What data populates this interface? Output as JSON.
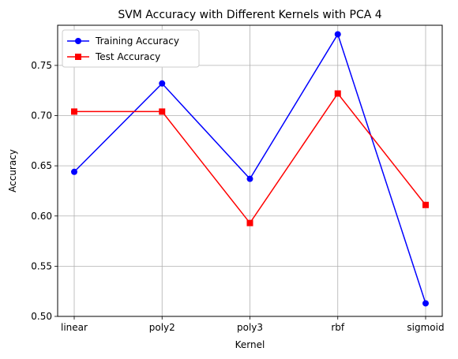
{
  "chart_data": {
    "type": "line",
    "title": "SVM Accuracy with Different Kernels with PCA 4",
    "xlabel": "Kernel",
    "ylabel": "Accuracy",
    "categories": [
      "linear",
      "poly2",
      "poly3",
      "rbf",
      "sigmoid"
    ],
    "ylim": [
      0.5,
      0.79
    ],
    "yticks": [
      "0.50",
      "0.55",
      "0.60",
      "0.65",
      "0.70",
      "0.75"
    ],
    "grid": true,
    "legend_position": "top-left",
    "series": [
      {
        "name": "Training Accuracy",
        "color": "#0000ff",
        "marker": "circle",
        "values": [
          0.644,
          0.732,
          0.637,
          0.781,
          0.513
        ]
      },
      {
        "name": "Test Accuracy",
        "color": "#ff0000",
        "marker": "square",
        "values": [
          0.704,
          0.704,
          0.593,
          0.722,
          0.611
        ]
      }
    ]
  }
}
